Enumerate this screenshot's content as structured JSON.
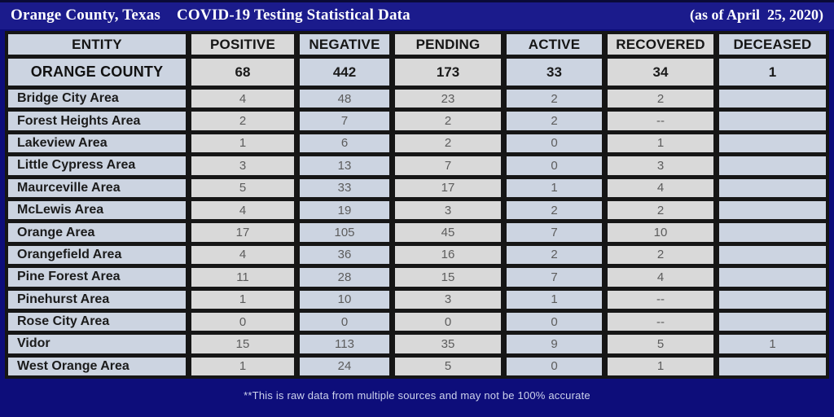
{
  "header": {
    "title_location": "Orange County, Texas",
    "title_main": "COVID-19 Testing Statistical Data",
    "date_note": "(as of April  25, 2020)"
  },
  "chart_data": {
    "type": "table",
    "title": "Orange County, Texas COVID-19 Testing Statistical Data",
    "as_of": "April 25, 2020",
    "columns": [
      "ENTITY",
      "POSITIVE",
      "NEGATIVE",
      "PENDING",
      "ACTIVE",
      "RECOVERED",
      "DECEASED"
    ],
    "summary_row": {
      "entity": "ORANGE COUNTY",
      "values": [
        "68",
        "442",
        "173",
        "33",
        "34",
        "1"
      ]
    },
    "rows": [
      {
        "entity": "Bridge City Area",
        "values": [
          "4",
          "48",
          "23",
          "2",
          "2",
          ""
        ]
      },
      {
        "entity": "Forest Heights Area",
        "values": [
          "2",
          "7",
          "2",
          "2",
          "--",
          ""
        ]
      },
      {
        "entity": "Lakeview Area",
        "values": [
          "1",
          "6",
          "2",
          "0",
          "1",
          ""
        ]
      },
      {
        "entity": "Little Cypress Area",
        "values": [
          "3",
          "13",
          "7",
          "0",
          "3",
          ""
        ]
      },
      {
        "entity": "Maurceville Area",
        "values": [
          "5",
          "33",
          "17",
          "1",
          "4",
          ""
        ]
      },
      {
        "entity": "McLewis Area",
        "values": [
          "4",
          "19",
          "3",
          "2",
          "2",
          ""
        ]
      },
      {
        "entity": "Orange Area",
        "values": [
          "17",
          "105",
          "45",
          "7",
          "10",
          ""
        ]
      },
      {
        "entity": "Orangefield Area",
        "values": [
          "4",
          "36",
          "16",
          "2",
          "2",
          ""
        ]
      },
      {
        "entity": "Pine Forest Area",
        "values": [
          "11",
          "28",
          "15",
          "7",
          "4",
          ""
        ]
      },
      {
        "entity": "Pinehurst Area",
        "values": [
          "1",
          "10",
          "3",
          "1",
          "--",
          ""
        ]
      },
      {
        "entity": "Rose City Area",
        "values": [
          "0",
          "0",
          "0",
          "0",
          "--",
          ""
        ]
      },
      {
        "entity": "Vidor",
        "values": [
          "15",
          "113",
          "35",
          "9",
          "5",
          "1"
        ]
      },
      {
        "entity": "West Orange Area",
        "values": [
          "1",
          "24",
          "5",
          "0",
          "1",
          ""
        ]
      }
    ]
  },
  "footer": {
    "note": "**This is raw data from multiple sources and may not be 100% accurate"
  },
  "colors": {
    "background": "#0d0d7a",
    "title_bar": "#1b1b8c",
    "cell_blue": "#ccd4e1",
    "cell_gray": "#d9d9d9",
    "grid_border": "#161616",
    "value_text": "#5c5c5c",
    "footer_text": "#cdd2ec"
  }
}
